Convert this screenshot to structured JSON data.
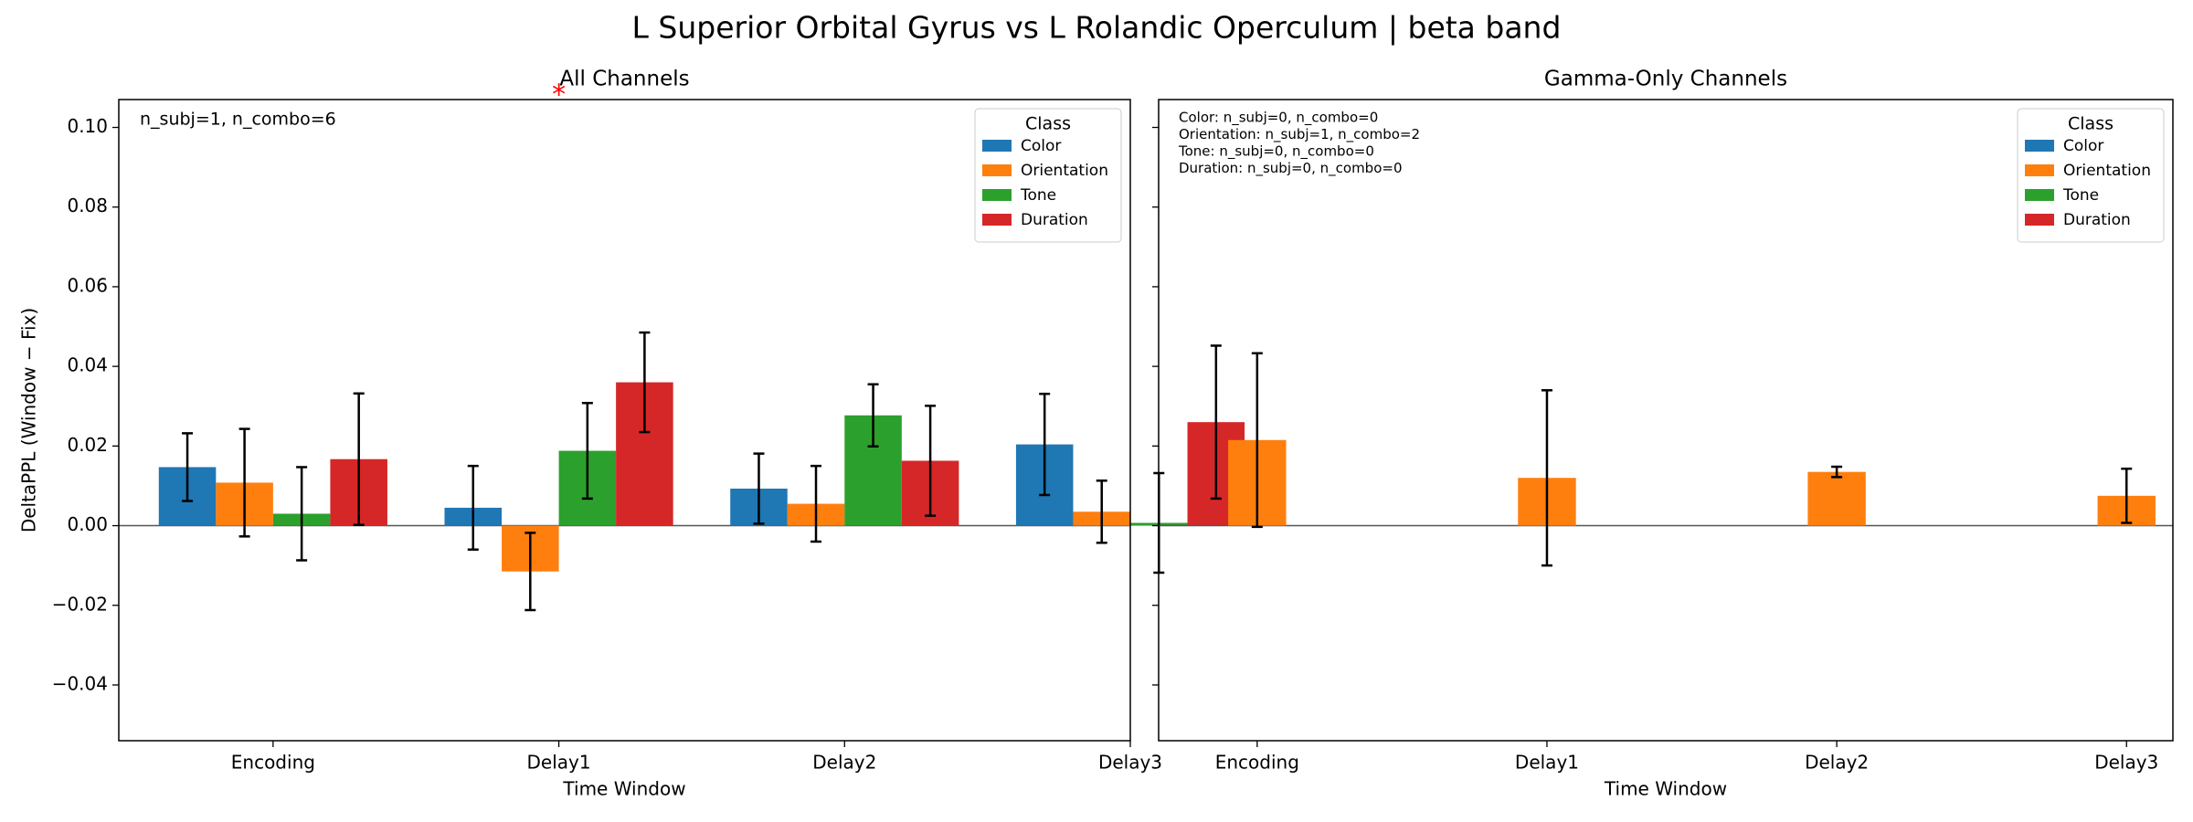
{
  "title": "L Superior Orbital Gyrus vs L Rolandic Operculum  |  beta band",
  "chart_data": [
    {
      "type": "bar",
      "title": "All Channels",
      "xlabel": "Time Window",
      "ylabel": "DeltaPPL (Window − Fix)",
      "categories": [
        "Encoding",
        "Delay1",
        "Delay2",
        "Delay3"
      ],
      "series": [
        {
          "name": "Color",
          "color": "#1f77b4",
          "values": [
            0.0147,
            0.0045,
            0.0093,
            0.0204
          ],
          "errors": [
            0.0085,
            0.0105,
            0.0088,
            0.0127
          ]
        },
        {
          "name": "Orientation",
          "color": "#ff7f0e",
          "values": [
            0.0108,
            -0.0115,
            0.0055,
            0.0035
          ],
          "errors": [
            0.0135,
            0.0097,
            0.0095,
            0.0078
          ]
        },
        {
          "name": "Tone",
          "color": "#2ca02c",
          "values": [
            0.003,
            0.0188,
            0.0277,
            0.0007
          ],
          "errors": [
            0.0117,
            0.012,
            0.0078,
            0.0125
          ]
        },
        {
          "name": "Duration",
          "color": "#d62728",
          "values": [
            0.0167,
            0.036,
            0.0163,
            0.026
          ],
          "errors": [
            0.0165,
            0.0125,
            0.0138,
            0.0192
          ]
        }
      ],
      "ylim": [
        -0.054,
        0.107
      ],
      "yticks": [
        {
          "value": -0.04,
          "label": "−0.04"
        },
        {
          "value": -0.02,
          "label": "−0.02"
        },
        {
          "value": 0,
          "label": "0.00"
        },
        {
          "value": 0.02,
          "label": "0.02"
        },
        {
          "value": 0.04,
          "label": "0.04"
        },
        {
          "value": 0.06,
          "label": "0.06"
        },
        {
          "value": 0.08,
          "label": "0.08"
        },
        {
          "value": 0.1,
          "label": "0.10"
        }
      ],
      "legend_title": "Class",
      "legend": "upper right",
      "annotations": [
        "n_subj=1, n_combo=6"
      ],
      "markers": [
        {
          "text": "*",
          "category": "Delay1"
        }
      ]
    },
    {
      "type": "bar",
      "title": "Gamma-Only Channels",
      "xlabel": "Time Window",
      "categories": [
        "Encoding",
        "Delay1",
        "Delay2",
        "Delay3"
      ],
      "series": [
        {
          "name": "Color",
          "color": "#1f77b4",
          "values": [
            null,
            null,
            null,
            null
          ],
          "errors": [
            null,
            null,
            null,
            null
          ]
        },
        {
          "name": "Orientation",
          "color": "#ff7f0e",
          "values": [
            0.0215,
            0.012,
            0.0135,
            0.0075
          ],
          "errors": [
            0.0218,
            0.022,
            0.0013,
            0.0068
          ]
        },
        {
          "name": "Tone",
          "color": "#2ca02c",
          "values": [
            null,
            null,
            null,
            null
          ],
          "errors": [
            null,
            null,
            null,
            null
          ]
        },
        {
          "name": "Duration",
          "color": "#d62728",
          "values": [
            null,
            null,
            null,
            null
          ],
          "errors": [
            null,
            null,
            null,
            null
          ]
        }
      ],
      "ylim": [
        -0.054,
        0.107
      ],
      "yticks": [
        -0.04,
        -0.02,
        0,
        0.02,
        0.04,
        0.06,
        0.08,
        0.1
      ],
      "legend_title": "Class",
      "legend": "upper right",
      "annotations": [
        "Color: n_subj=0, n_combo=0",
        "Orientation: n_subj=1, n_combo=2",
        "Tone: n_subj=0, n_combo=0",
        "Duration: n_subj=0, n_combo=0"
      ]
    }
  ]
}
